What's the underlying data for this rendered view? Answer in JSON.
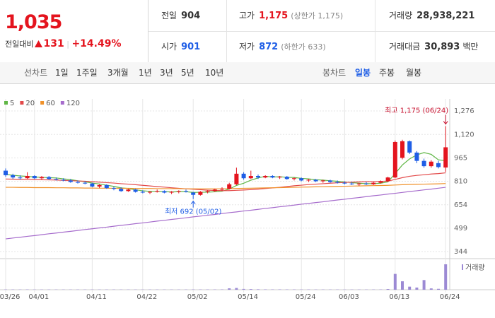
{
  "header": {
    "price": "1,035",
    "change_label": "전일대비",
    "change": "131",
    "change_pct": "+14.49%",
    "stats": [
      [
        {
          "label": "전일",
          "value": "904"
        },
        {
          "label": "고가",
          "value": "1,175",
          "extra": "(상한가 1,175)"
        },
        {
          "label": "거래량",
          "value": "28,938,221"
        }
      ],
      [
        {
          "label": "시가",
          "value": "901"
        },
        {
          "label": "저가",
          "value": "872",
          "extra": "(하한가 633)"
        },
        {
          "label": "거래대금",
          "value": "30,893",
          "unit": "백만"
        }
      ]
    ]
  },
  "tabs": {
    "line_label": "선차트",
    "line": [
      "1일",
      "1주일",
      "3개월",
      "1년",
      "3년",
      "5년",
      "10년"
    ],
    "candle_label": "봉차트",
    "candle": [
      "일봉",
      "주봉",
      "월봉"
    ],
    "selected": "일봉"
  },
  "chart_data": {
    "type": "candlestick",
    "categories": [
      "03/26",
      null,
      null,
      null,
      "04/01",
      null,
      null,
      null,
      null,
      null,
      null,
      null,
      "04/11",
      null,
      null,
      null,
      null,
      null,
      null,
      "04/22",
      null,
      null,
      null,
      null,
      null,
      null,
      "05/02",
      null,
      null,
      null,
      null,
      null,
      null,
      "05/14",
      null,
      null,
      null,
      null,
      null,
      null,
      null,
      "05/24",
      null,
      null,
      null,
      null,
      null,
      "06/03",
      null,
      null,
      null,
      null,
      null,
      null,
      "06/13",
      null,
      null,
      null,
      null,
      null,
      null,
      "06/24"
    ],
    "open": [
      880,
      850,
      835,
      830,
      845,
      830,
      838,
      825,
      820,
      815,
      805,
      800,
      795,
      775,
      785,
      765,
      760,
      745,
      755,
      740,
      735,
      740,
      745,
      735,
      740,
      745,
      735,
      720,
      740,
      745,
      755,
      760,
      790,
      860,
      830,
      845,
      835,
      845,
      835,
      840,
      825,
      830,
      815,
      820,
      810,
      815,
      805,
      800,
      795,
      790,
      795,
      790,
      800,
      810,
      835,
      965,
      1075,
      1000,
      945,
      910,
      930,
      901
    ],
    "high": [
      895,
      860,
      850,
      870,
      850,
      845,
      845,
      835,
      830,
      825,
      815,
      810,
      800,
      790,
      790,
      775,
      770,
      760,
      760,
      750,
      745,
      755,
      750,
      745,
      750,
      755,
      740,
      745,
      750,
      760,
      770,
      800,
      900,
      870,
      880,
      855,
      850,
      850,
      845,
      845,
      835,
      835,
      825,
      825,
      820,
      820,
      815,
      810,
      805,
      800,
      805,
      805,
      815,
      840,
      1080,
      1085,
      1080,
      1010,
      960,
      950,
      945,
      1175
    ],
    "low": [
      840,
      825,
      820,
      825,
      825,
      820,
      820,
      815,
      810,
      800,
      795,
      790,
      770,
      765,
      760,
      750,
      740,
      740,
      735,
      730,
      725,
      735,
      730,
      725,
      730,
      735,
      692,
      715,
      730,
      740,
      745,
      755,
      785,
      820,
      825,
      825,
      830,
      830,
      825,
      820,
      815,
      810,
      805,
      805,
      800,
      800,
      795,
      790,
      785,
      780,
      785,
      785,
      795,
      805,
      830,
      955,
      990,
      930,
      900,
      900,
      895,
      872
    ],
    "close": [
      850,
      835,
      830,
      845,
      830,
      838,
      825,
      820,
      815,
      805,
      800,
      795,
      775,
      785,
      765,
      760,
      745,
      755,
      740,
      735,
      740,
      745,
      735,
      740,
      745,
      740,
      720,
      740,
      745,
      755,
      760,
      790,
      860,
      830,
      845,
      835,
      845,
      835,
      840,
      825,
      830,
      815,
      820,
      810,
      815,
      805,
      800,
      795,
      790,
      795,
      790,
      800,
      810,
      835,
      1070,
      1075,
      1000,
      945,
      910,
      940,
      904,
      1035
    ],
    "up_color": "#e4141e",
    "down_color": "#1f5ee6",
    "series": [
      {
        "name": "5",
        "color": "#5fb645",
        "values": [
          855,
          850,
          845,
          842,
          838,
          836,
          834,
          832,
          826,
          821,
          813,
          807,
          798,
          792,
          784,
          776,
          766,
          762,
          753,
          747,
          743,
          743,
          741,
          739,
          741,
          741,
          736,
          737,
          738,
          740,
          744,
          758,
          782,
          797,
          817,
          832,
          843,
          838,
          840,
          836,
          835,
          829,
          826,
          820,
          818,
          813,
          810,
          805,
          801,
          797,
          794,
          794,
          797,
          806,
          861,
          918,
          958,
          985,
          1000,
          988,
          952,
          947
        ]
      },
      {
        "name": "20",
        "color": "#e34a4a",
        "values": [
          825,
          824,
          823,
          822,
          821,
          820,
          819,
          818,
          816,
          814,
          812,
          810,
          807,
          804,
          801,
          798,
          794,
          791,
          787,
          783,
          779,
          775,
          771,
          767,
          763,
          760,
          757,
          754,
          751,
          749,
          748,
          748,
          750,
          752,
          755,
          758,
          762,
          766,
          770,
          775,
          780,
          784,
          788,
          791,
          794,
          797,
          800,
          802,
          804,
          806,
          807,
          808,
          809,
          811,
          822,
          834,
          843,
          849,
          853,
          858,
          861,
          866
        ]
      },
      {
        "name": "60",
        "color": "#f0922b",
        "values": [
          770,
          770,
          769,
          769,
          768,
          768,
          768,
          767,
          767,
          766,
          766,
          765,
          765,
          764,
          764,
          763,
          763,
          763,
          762,
          762,
          762,
          761,
          761,
          761,
          761,
          760,
          760,
          760,
          760,
          760,
          760,
          761,
          762,
          763,
          764,
          765,
          766,
          767,
          768,
          769,
          770,
          771,
          772,
          773,
          774,
          775,
          776,
          777,
          778,
          779,
          780,
          781,
          782,
          783,
          785,
          787,
          789,
          790,
          791,
          792,
          793,
          795
        ]
      },
      {
        "name": "120",
        "color": "#a66ccc",
        "values": [
          428,
          434,
          439,
          445,
          450,
          456,
          462,
          467,
          473,
          478,
          484,
          490,
          495,
          501,
          506,
          512,
          518,
          523,
          529,
          534,
          540,
          546,
          551,
          557,
          562,
          568,
          574,
          579,
          585,
          590,
          596,
          602,
          607,
          613,
          618,
          624,
          630,
          635,
          641,
          646,
          652,
          658,
          663,
          669,
          674,
          680,
          686,
          691,
          697,
          702,
          708,
          714,
          719,
          725,
          730,
          736,
          742,
          747,
          753,
          758,
          764,
          770
        ]
      }
    ],
    "volume_name": "거래량",
    "volume_color": "#9c8ad4",
    "volume": [
      300000,
      280000,
      260000,
      320000,
      250000,
      240000,
      260000,
      230000,
      250000,
      240000,
      260000,
      230000,
      280000,
      250000,
      260000,
      270000,
      240000,
      250000,
      230000,
      240000,
      250000,
      230000,
      240000,
      250000,
      230000,
      260000,
      350000,
      300000,
      320000,
      300000,
      340000,
      1600000,
      2000000,
      900000,
      700000,
      500000,
      400000,
      350000,
      380000,
      320000,
      300000,
      280000,
      300000,
      260000,
      270000,
      250000,
      260000,
      240000,
      250000,
      260000,
      240000,
      280000,
      300000,
      800000,
      18000000,
      9600000,
      3500000,
      2500000,
      11000000,
      1500000,
      1000000,
      28938221
    ],
    "ylim": [
      316,
      1318
    ],
    "yticks": [
      {
        "value": 1276,
        "label": "1,276"
      },
      {
        "value": 1120,
        "label": "1,120"
      },
      965,
      810,
      654,
      499,
      344
    ],
    "grid": true,
    "annotations": [
      {
        "text": "최고 1,175 (06/24)",
        "x": "06/24",
        "y": 1175
      },
      {
        "text": "최저 692 (05/02)",
        "x": "05/02",
        "y": 692
      }
    ]
  }
}
